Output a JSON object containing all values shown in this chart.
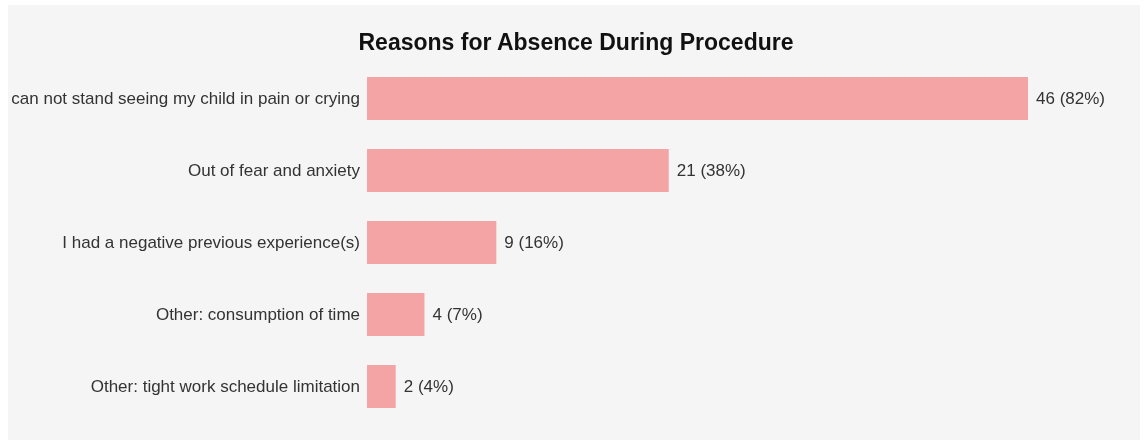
{
  "chart_data": {
    "type": "bar",
    "orientation": "horizontal",
    "title": "Reasons for Absence During Procedure",
    "categories": [
      "can not stand seeing my child in pain or crying",
      "Out of fear and anxiety",
      "I had a negative previous experience(s)",
      "Other: consumption of time",
      "Other: tight work schedule limitation"
    ],
    "values": [
      46,
      21,
      9,
      4,
      2
    ],
    "value_labels": [
      "46 (82%)",
      "21 (38%)",
      "9 (16%)",
      "4 (7%)",
      "2 (4%)"
    ],
    "color": "#f4a4a4",
    "tick_labels": "y"
  }
}
